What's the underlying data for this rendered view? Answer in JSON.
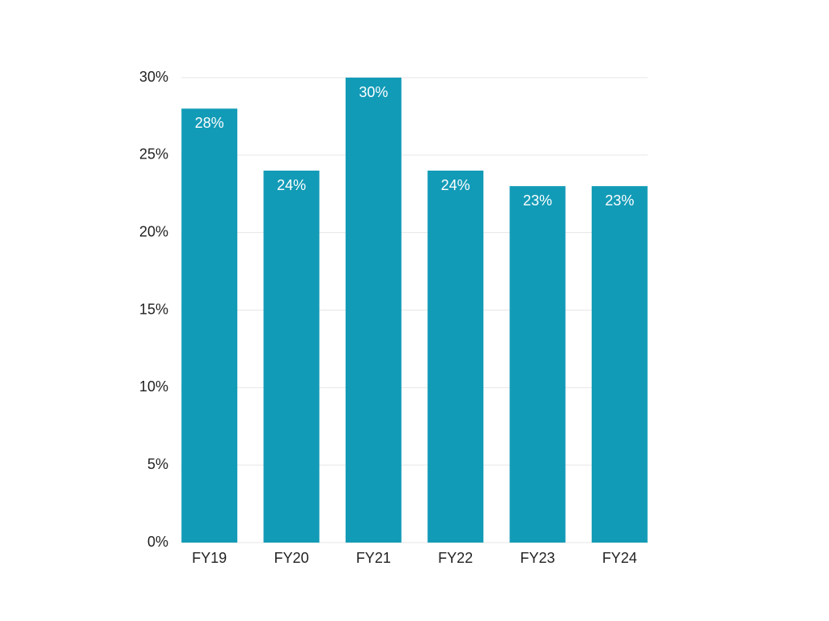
{
  "chart_data": {
    "type": "bar",
    "categories": [
      "FY19",
      "FY20",
      "FY21",
      "FY22",
      "FY23",
      "FY24"
    ],
    "values": [
      28,
      24,
      30,
      24,
      23,
      23
    ],
    "value_labels": [
      "28%",
      "24%",
      "30%",
      "24%",
      "23%",
      "23%"
    ],
    "color": "#129bb7",
    "ylim": [
      0,
      30
    ],
    "yticks": [
      {
        "value": 0,
        "label": "0%"
      },
      {
        "value": 5,
        "label": "5%"
      },
      {
        "value": 10,
        "label": "10%"
      },
      {
        "value": 15,
        "label": "15%"
      },
      {
        "value": 20,
        "label": "20%"
      },
      {
        "value": 25,
        "label": "25%"
      },
      {
        "value": 30,
        "label": "30%"
      }
    ],
    "grid": true
  }
}
